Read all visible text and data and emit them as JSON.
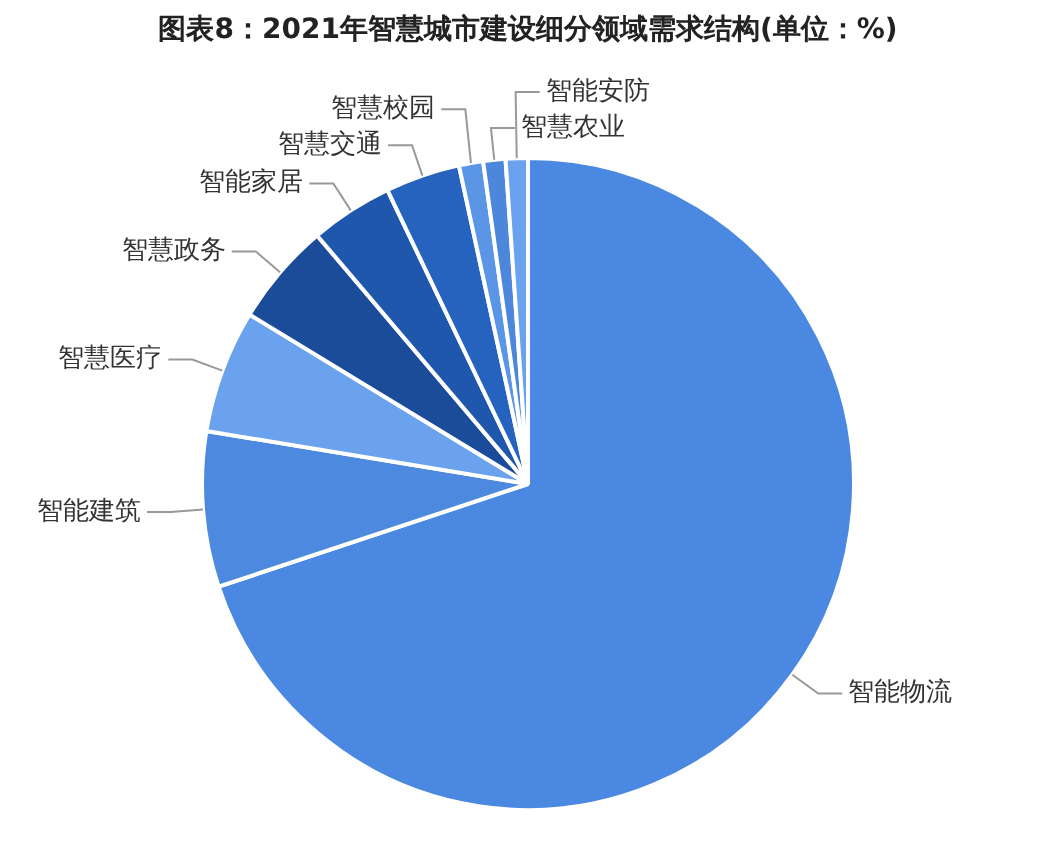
{
  "chart_data": {
    "type": "pie",
    "title": "图表8：2021年智慧城市建设细分领域需求结构(单位：%)",
    "categories": [
      "智能物流",
      "智能建筑",
      "智慧医疗",
      "智慧政务",
      "智能家居",
      "智慧交通",
      "智慧校园",
      "智慧农业",
      "智能安防"
    ],
    "values": [
      69.9,
      7.7,
      6.1,
      5.1,
      4.1,
      3.7,
      1.2,
      1.1,
      1.1
    ],
    "colors": [
      "#4a88e2",
      "#4d89de",
      "#6aa2ee",
      "#1a4c9a",
      "#1f57ad",
      "#2563be",
      "#5b95e6",
      "#4c87dc",
      "#6aa2ee"
    ],
    "legend": false
  }
}
